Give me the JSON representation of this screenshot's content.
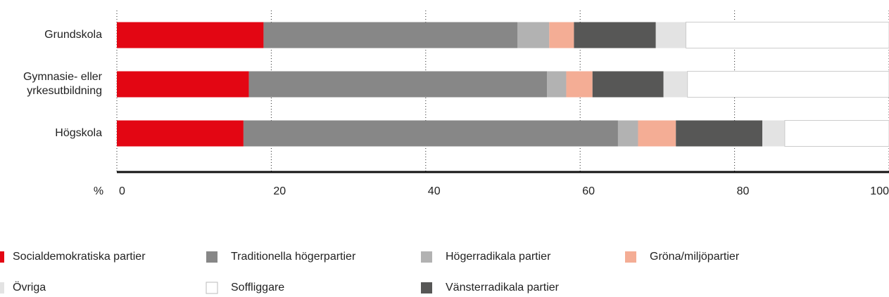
{
  "chart_data": {
    "type": "stacked_bar_horizontal",
    "categories": [
      "Grundskola",
      "Gymnasie- eller yrkesutbildning",
      "Högskola"
    ],
    "x_label": "%",
    "xlim": [
      0,
      100
    ],
    "xticks": [
      0,
      20,
      40,
      60,
      80,
      100
    ],
    "grid": true,
    "series": [
      {
        "name": "Socialdemokratiska partier",
        "color": "#e30613",
        "values": [
          19.0,
          17.1,
          16.4
        ]
      },
      {
        "name": "Traditionella högerpartier",
        "color": "#878787",
        "values": [
          32.9,
          38.6,
          48.5
        ]
      },
      {
        "name": "Högerradikala partier",
        "color": "#b2b2b2",
        "values": [
          4.1,
          2.5,
          2.6
        ]
      },
      {
        "name": "Gröna/miljöpartier",
        "color": "#f4ad95",
        "values": [
          3.2,
          3.4,
          4.9
        ]
      },
      {
        "name": "Vänsterradikala partier",
        "color": "#575756",
        "values": [
          10.6,
          9.2,
          11.2
        ]
      },
      {
        "name": "Övriga",
        "color": "#e3e3e3",
        "values": [
          3.9,
          3.1,
          2.9
        ]
      },
      {
        "name": "Soffliggare",
        "color": "#ffffff",
        "values": [
          26.3,
          26.1,
          13.5
        ]
      }
    ]
  }
}
